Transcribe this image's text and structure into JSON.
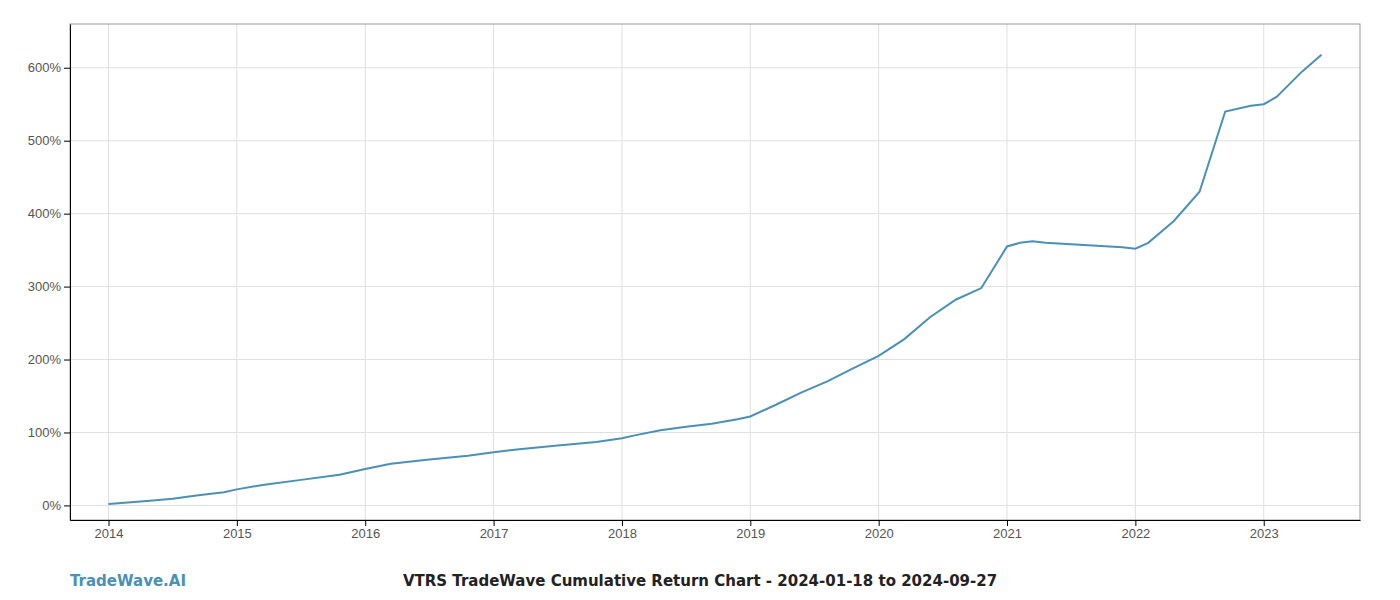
{
  "chart_data": {
    "type": "line",
    "title": "VTRS TradeWave Cumulative Return Chart - 2024-01-18 to 2024-09-27",
    "annotations": [
      "TradeWave.AI"
    ],
    "color": "#4a90b8",
    "grid": true,
    "x": [
      2014.0,
      2014.15,
      2014.3,
      2014.5,
      2014.7,
      2014.9,
      2015.0,
      2015.2,
      2015.5,
      2015.8,
      2016.0,
      2016.2,
      2016.5,
      2016.8,
      2017.0,
      2017.2,
      2017.5,
      2017.8,
      2018.0,
      2018.1,
      2018.3,
      2018.5,
      2018.7,
      2018.9,
      2019.0,
      2019.2,
      2019.4,
      2019.6,
      2019.8,
      2020.0,
      2020.2,
      2020.4,
      2020.6,
      2020.8,
      2021.0,
      2021.1,
      2021.2,
      2021.3,
      2021.5,
      2021.7,
      2021.9,
      2022.0,
      2022.1,
      2022.3,
      2022.5,
      2022.7,
      2022.9,
      2023.0,
      2023.1,
      2023.3,
      2023.45
    ],
    "values": [
      2,
      4,
      6,
      9,
      14,
      18,
      22,
      28,
      35,
      42,
      50,
      57,
      63,
      68,
      73,
      77,
      82,
      87,
      92,
      96,
      103,
      108,
      112,
      118,
      122,
      138,
      155,
      170,
      188,
      205,
      228,
      258,
      282,
      298,
      355,
      360,
      362,
      360,
      358,
      356,
      354,
      352,
      360,
      390,
      430,
      540,
      548,
      550,
      560,
      595,
      618
    ],
    "xlim": [
      2013.7,
      2023.75
    ],
    "xticks": [
      2014,
      2015,
      2016,
      2017,
      2018,
      2019,
      2020,
      2021,
      2022,
      2023
    ],
    "ylim": [
      -20,
      660
    ],
    "yticks": [
      {
        "value": 0,
        "label": "0%"
      },
      {
        "value": 100,
        "label": "100%"
      },
      {
        "value": 200,
        "label": "200%"
      },
      {
        "value": 300,
        "label": "300%"
      },
      {
        "value": 400,
        "label": "400%"
      },
      {
        "value": 500,
        "label": "500%"
      },
      {
        "value": 600,
        "label": "600%"
      }
    ]
  }
}
